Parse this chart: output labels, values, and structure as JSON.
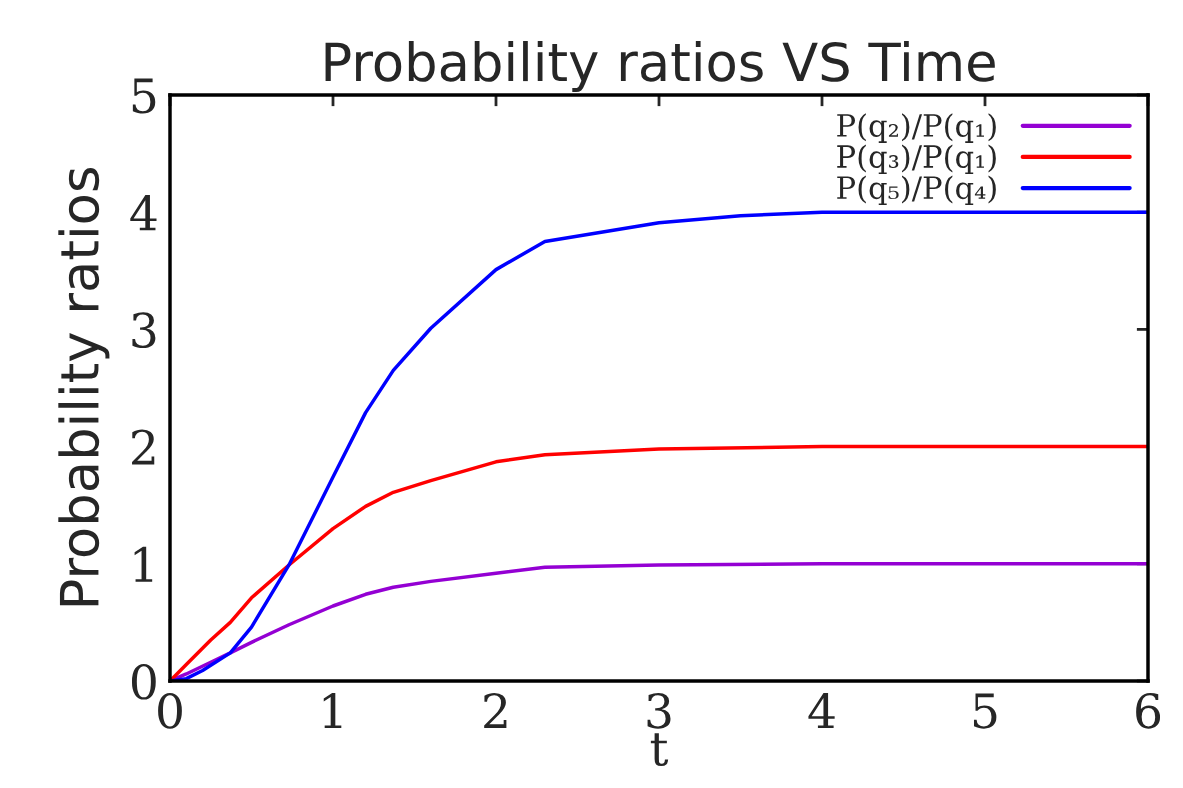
{
  "chart_data": {
    "type": "line",
    "title": "Probability ratios VS Time",
    "xlabel": "t",
    "ylabel": "Probability ratios",
    "xlim": [
      0,
      6
    ],
    "ylim": [
      0,
      5
    ],
    "xticks": [
      0,
      1,
      2,
      3,
      4,
      5,
      6
    ],
    "yticks": [
      0,
      1,
      2,
      3,
      4,
      5
    ],
    "grid": false,
    "legend": "top right",
    "marker": "none",
    "line_style": "solid",
    "series": [
      {
        "name": "P(q₂)/P(q₁)",
        "color": "#9400d3",
        "x": [
          0,
          0.1,
          0.25,
          0.37,
          0.5,
          0.73,
          1.0,
          1.2,
          1.37,
          1.6,
          2.0,
          2.3,
          3.0,
          4.0,
          6.0
        ],
        "values": [
          0,
          0.06,
          0.16,
          0.24,
          0.33,
          0.48,
          0.64,
          0.74,
          0.8,
          0.85,
          0.92,
          0.97,
          0.99,
          1.0,
          1.0
        ]
      },
      {
        "name": "P(q₃)/P(q₁)",
        "color": "#ff0000",
        "x": [
          0,
          0.1,
          0.25,
          0.37,
          0.5,
          0.73,
          1.0,
          1.2,
          1.37,
          1.6,
          2.0,
          2.3,
          3.0,
          4.0,
          6.0
        ],
        "values": [
          0,
          0.14,
          0.35,
          0.5,
          0.71,
          0.99,
          1.3,
          1.49,
          1.61,
          1.71,
          1.87,
          1.93,
          1.98,
          2.0,
          2.0
        ]
      },
      {
        "name": "P(q₅)/P(q₄)",
        "color": "#0000ff",
        "x": [
          0,
          0.1,
          0.2,
          0.37,
          0.5,
          0.73,
          1.0,
          1.2,
          1.37,
          1.6,
          2.0,
          2.3,
          3.0,
          3.5,
          4.0,
          6.0
        ],
        "values": [
          0,
          0.02,
          0.09,
          0.24,
          0.46,
          0.99,
          1.74,
          2.29,
          2.65,
          3.01,
          3.51,
          3.75,
          3.91,
          3.97,
          4.0,
          4.0
        ]
      }
    ]
  }
}
